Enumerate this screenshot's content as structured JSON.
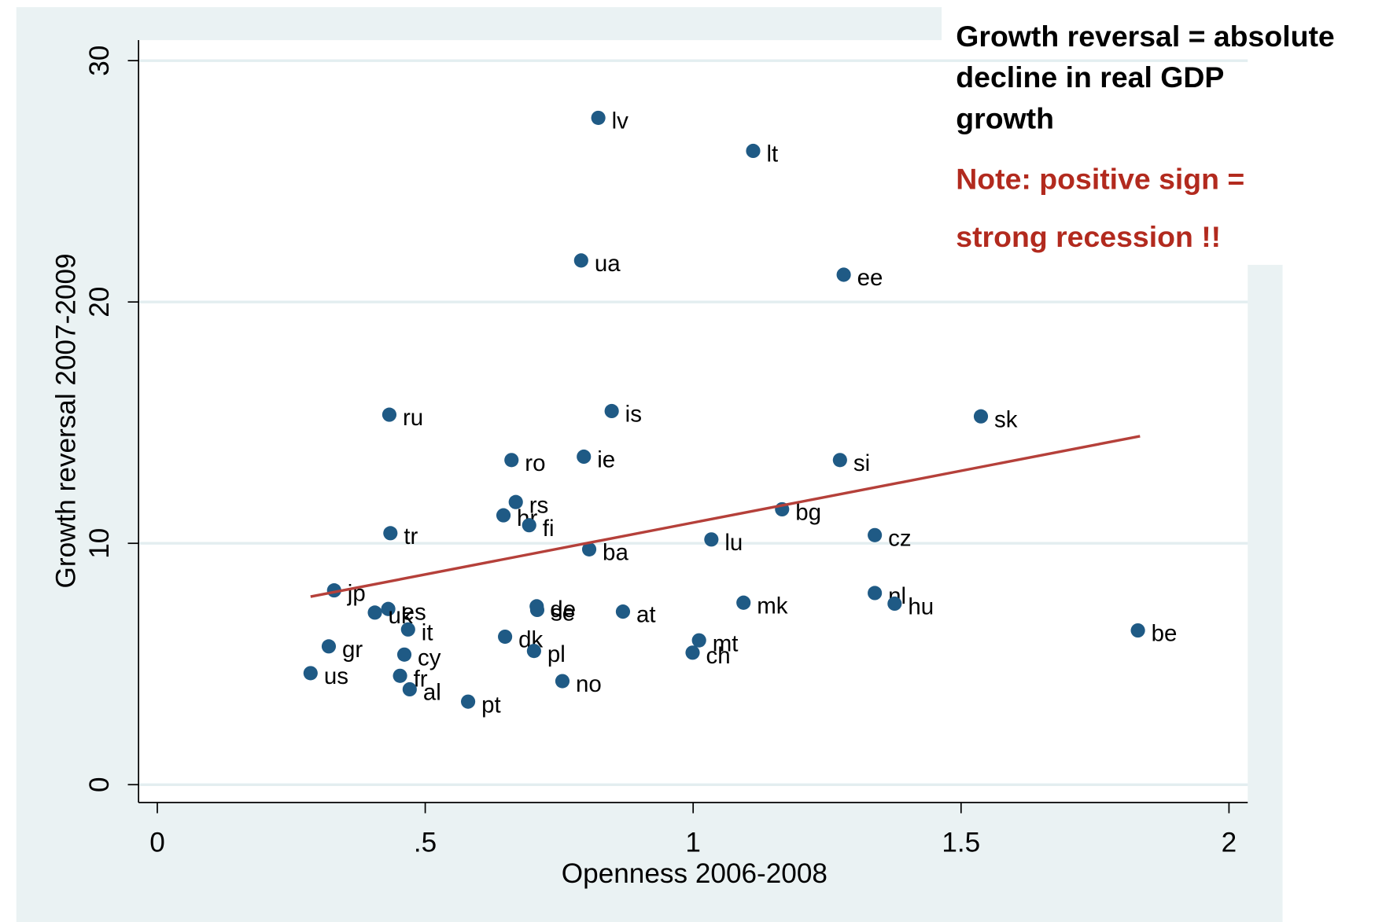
{
  "chart_data": {
    "type": "scatter",
    "x_label": "Openness 2006-2008",
    "y_label": "Growth reversal 2007-2009",
    "xlim": [
      -0.035,
      2.035
    ],
    "ylim": [
      -0.74,
      30.85
    ],
    "xticks": [
      0,
      {
        "value": 0.5,
        "label": ".5"
      },
      1,
      1.5,
      2
    ],
    "yticks": [
      0,
      10,
      20,
      30
    ],
    "grid": true,
    "series": [
      {
        "color": "#1f5a85",
        "labels": [
          "lv",
          "lt",
          "ua",
          "ee",
          "ru",
          "is",
          "sk",
          "ro",
          "ie",
          "si",
          "rs",
          "hr",
          "fi",
          "bg",
          "tr",
          "cz",
          "lu",
          "ba",
          "jp",
          "nl",
          "hu",
          "mk",
          "es",
          "uk",
          "de",
          "se",
          "at",
          "it",
          "be",
          "dk",
          "mt",
          "gr",
          "cy",
          "ch",
          "pl",
          "us",
          "fr",
          "no",
          "al",
          "pt"
        ],
        "x": [
          0.823,
          1.112,
          0.791,
          1.281,
          0.433,
          0.848,
          1.537,
          0.661,
          0.796,
          1.274,
          0.669,
          0.646,
          0.694,
          1.166,
          0.435,
          1.339,
          1.034,
          0.806,
          0.33,
          1.339,
          1.376,
          1.094,
          0.431,
          0.406,
          0.708,
          0.709,
          0.869,
          0.468,
          1.83,
          0.649,
          1.011,
          0.32,
          0.461,
          0.999,
          0.703,
          0.286,
          0.453,
          0.756,
          0.471,
          0.58
        ],
        "y": [
          27.63,
          26.26,
          21.72,
          21.13,
          15.33,
          15.48,
          15.26,
          13.45,
          13.59,
          13.45,
          11.71,
          11.16,
          10.75,
          11.41,
          10.42,
          10.34,
          10.16,
          9.75,
          8.05,
          7.94,
          7.5,
          7.54,
          7.28,
          7.13,
          7.39,
          7.24,
          7.17,
          6.43,
          6.39,
          6.13,
          5.98,
          5.73,
          5.39,
          5.47,
          5.54,
          4.62,
          4.51,
          4.29,
          3.95,
          3.44
        ]
      }
    ],
    "fit_line": {
      "color": "#b5403a",
      "x": [
        0.286,
        1.834
      ],
      "y": [
        7.79,
        14.44
      ]
    },
    "annotation": {
      "lines": [
        "Growth reversal = absolute",
        "decline in real GDP",
        "growth"
      ],
      "note_lines": [
        "Note: positive sign =",
        "strong recession !!"
      ],
      "note_color": "#b22a1e"
    }
  }
}
